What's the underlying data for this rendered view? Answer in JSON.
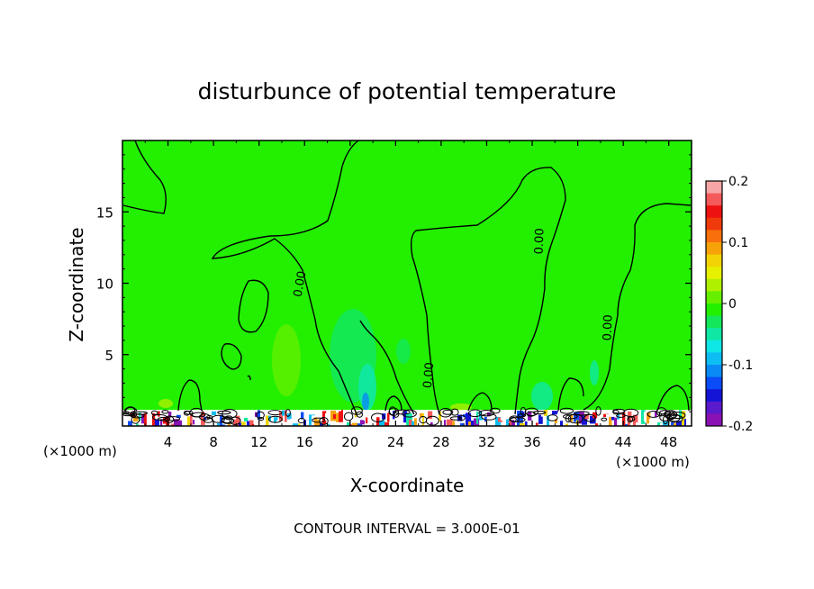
{
  "chart_data": {
    "type": "heatmap",
    "title": "disturbunce of potential temperature",
    "xlabel": "X-coordinate",
    "ylabel": "Z-coordinate",
    "x_unit": "(×1000 m)",
    "x_unit_right": "(×1000 m)",
    "xlim": [
      0,
      50
    ],
    "ylim": [
      0,
      20
    ],
    "x_ticks": [
      4,
      8,
      12,
      16,
      20,
      24,
      28,
      32,
      36,
      40,
      44,
      48
    ],
    "y_ticks": [
      5,
      10,
      15
    ],
    "colorbar": {
      "min": -0.2,
      "max": 0.2,
      "tick_labels": [
        "0.2",
        "0.1",
        "0",
        "-0.1",
        "-0.2"
      ],
      "tick_values": [
        0.2,
        0.1,
        0,
        -0.1,
        -0.2
      ],
      "colors": [
        "#f7a6a6",
        "#f55a5a",
        "#ee1111",
        "#f03a0c",
        "#f7700b",
        "#f8a20a",
        "#f2d406",
        "#e6f000",
        "#aef000",
        "#66f000",
        "#22f000",
        "#14e85a",
        "#0fe8a5",
        "#0fe6e6",
        "#0cbef2",
        "#0a8af5",
        "#0a4cf5",
        "#1414d6",
        "#5a1acb",
        "#8a11b3"
      ]
    },
    "contour_labels": [
      "0.00",
      "0.00",
      "0.00",
      "0.00"
    ],
    "contour_level": 0,
    "contour_interval_text": "CONTOUR INTERVAL = 3.000E-01",
    "background_value": 0,
    "background_color": "#22f000"
  }
}
